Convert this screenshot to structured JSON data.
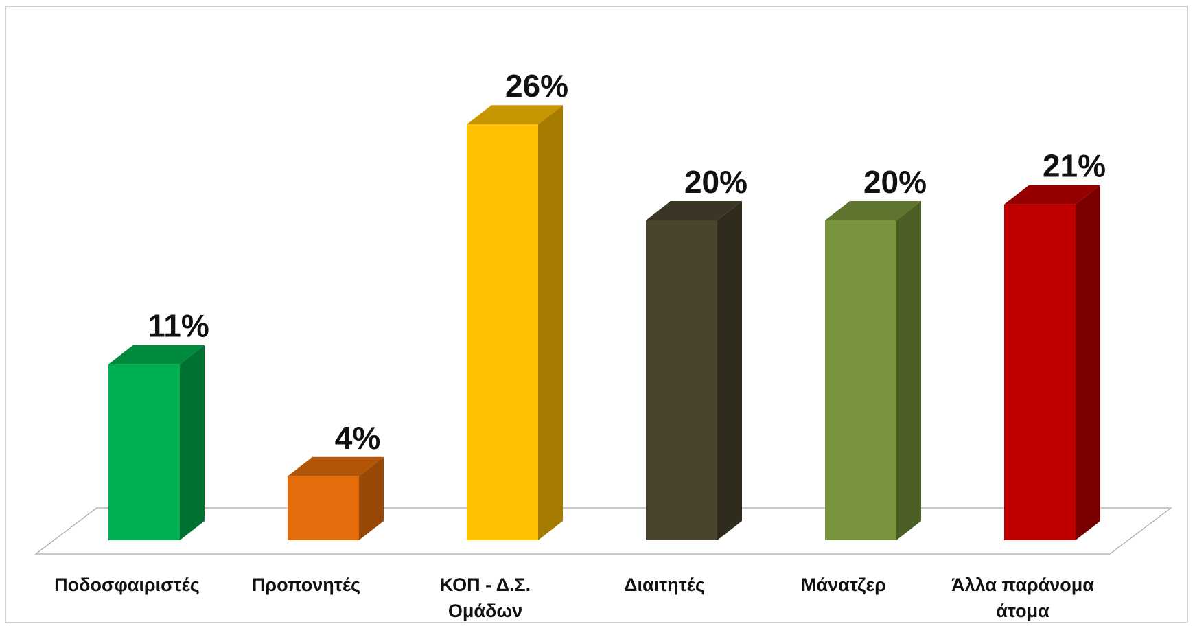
{
  "chart_data": {
    "type": "bar",
    "style": "3d-column",
    "title": "",
    "xlabel": "",
    "ylabel": "",
    "ylim": [
      0,
      30
    ],
    "grid": false,
    "legend": "none",
    "categories": [
      [
        "Ποδοσφαιριστές"
      ],
      [
        "Προπονητές"
      ],
      [
        "ΚΟΠ - Δ.Σ.",
        "Ομάδων"
      ],
      [
        "Διαιτητές"
      ],
      [
        "Μάνατζερ"
      ],
      [
        "Άλλα παράνομα",
        "άτομα"
      ]
    ],
    "values": [
      11,
      4,
      26,
      20,
      20,
      21
    ],
    "data_labels": [
      "11%",
      "4%",
      "26%",
      "20%",
      "20%",
      "21%"
    ],
    "colors": [
      {
        "front": "#00b050",
        "side": "#007033",
        "top": "#008a3e"
      },
      {
        "front": "#e46c0a",
        "side": "#974806",
        "top": "#b35507"
      },
      {
        "front": "#ffc000",
        "side": "#a67c00",
        "top": "#c89600"
      },
      {
        "front": "#4a442e",
        "side": "#302c1d",
        "top": "#3a3524"
      },
      {
        "front": "#77933c",
        "side": "#4b5f25",
        "top": "#5e742f"
      },
      {
        "front": "#c00000",
        "side": "#7a0000",
        "top": "#960000"
      }
    ],
    "floor_color": "#ffffff",
    "floor_edge": "#a6a6a6"
  }
}
